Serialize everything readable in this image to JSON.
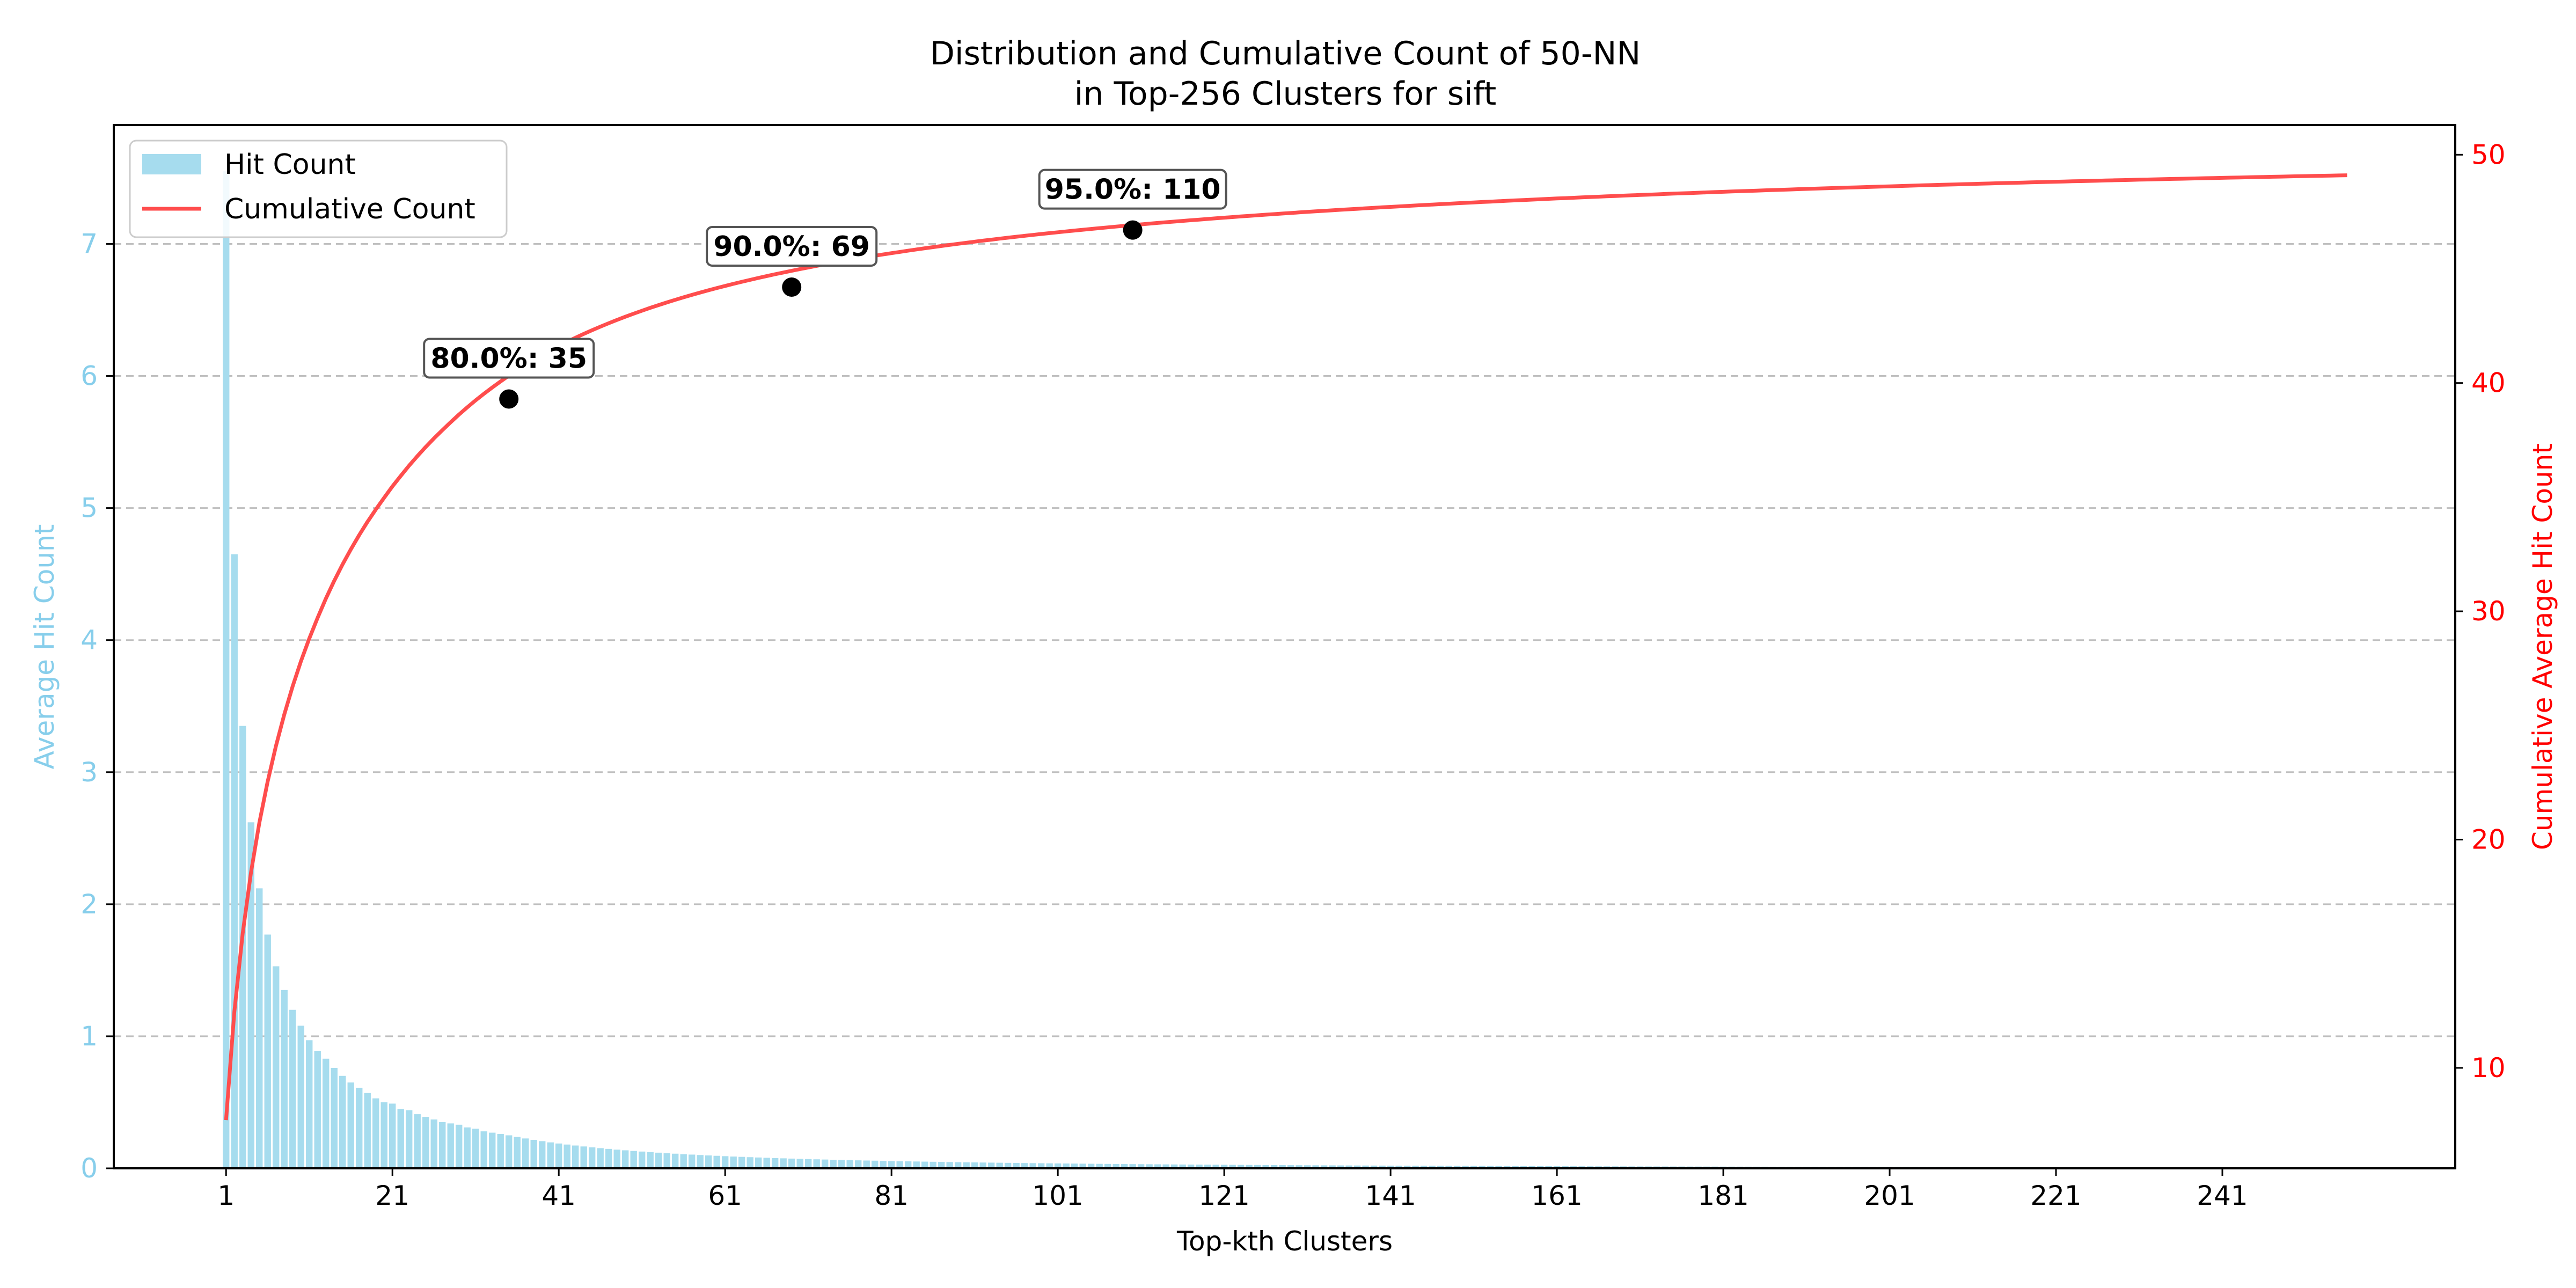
{
  "chart_data": {
    "type": "bar",
    "title_line1": "Distribution and Cumulative Count of 50-NN",
    "title_line2": "in Top-256 Clusters for sift",
    "xlabel": "Top-kth Clusters",
    "ylabel_left": "Average Hit Count",
    "ylabel_right": "Cumulative Average Hit Count",
    "x_ticks": [
      "1",
      "21",
      "41",
      "61",
      "81",
      "101",
      "121",
      "141",
      "161",
      "181",
      "201",
      "221",
      "241"
    ],
    "y_ticks_left": [
      "0",
      "1",
      "2",
      "3",
      "4",
      "5",
      "6",
      "7"
    ],
    "y_ticks_right": [
      "10",
      "20",
      "30",
      "40",
      "50"
    ],
    "xlim": [
      -12.5,
      269
    ],
    "ylim_left": [
      0,
      7.9
    ],
    "ylim_right": [
      5.6,
      51.3
    ],
    "grid": "horizontal dashed",
    "legend_position": "top-left",
    "colors": {
      "bars": "#a6dcee",
      "left_axis": "#87ceeb",
      "line": "#ff4d4d",
      "right_axis": "#ff0000",
      "marker": "#000000"
    },
    "series": [
      {
        "name": "Hit Count",
        "type": "bar",
        "axis": "left",
        "x_start": 1,
        "x_end": 256,
        "values_head": [
          7.55,
          4.65,
          3.35,
          2.62,
          2.12,
          1.77,
          1.53,
          1.35,
          1.2,
          1.08,
          0.97,
          0.89,
          0.83,
          0.76,
          0.7,
          0.65,
          0.61,
          0.57,
          0.53,
          0.5,
          0.49,
          0.45,
          0.44,
          0.41,
          0.39,
          0.37,
          0.35,
          0.34,
          0.33,
          0.31,
          0.3,
          0.28,
          0.27,
          0.26,
          0.25
        ]
      },
      {
        "name": "Cumulative Count",
        "type": "line",
        "axis": "right",
        "x_start": 1,
        "x_end": 256,
        "final_value": 49.1
      }
    ],
    "annotations": [
      {
        "label": "80.0%: 35",
        "x": 35,
        "y": 39.3
      },
      {
        "label": "90.0%: 69",
        "x": 69,
        "y": 44.2
      },
      {
        "label": "95.0%: 110",
        "x": 110,
        "y": 46.7
      }
    ]
  }
}
